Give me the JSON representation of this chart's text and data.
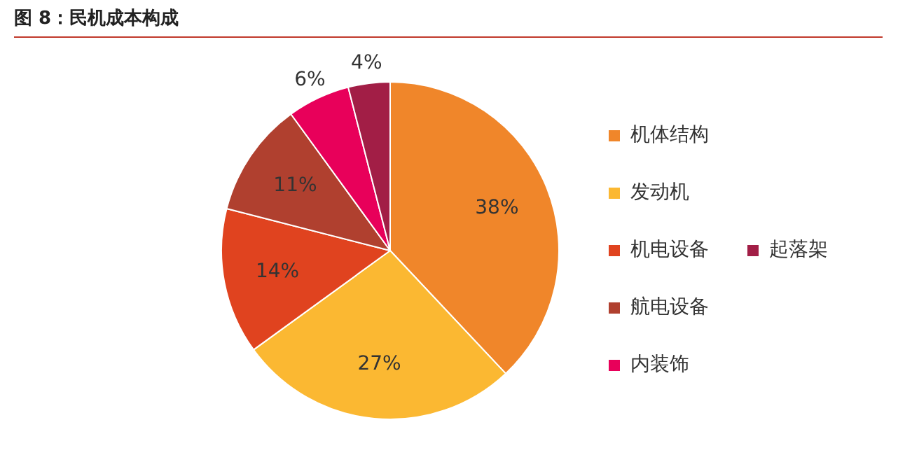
{
  "chart_data": {
    "type": "pie",
    "title": "图 8：民机成本构成",
    "categories": [
      "机体结构",
      "发动机",
      "机电设备",
      "航电设备",
      "内装饰",
      "起落架"
    ],
    "values": [
      38,
      27,
      14,
      11,
      6,
      4
    ],
    "value_labels": [
      "38%",
      "27%",
      "14%",
      "11%",
      "6%",
      "4%"
    ],
    "colors": [
      "#f0862a",
      "#fbb832",
      "#e0431f",
      "#b0402f",
      "#e8005a",
      "#a21e46"
    ],
    "legend": "right"
  }
}
